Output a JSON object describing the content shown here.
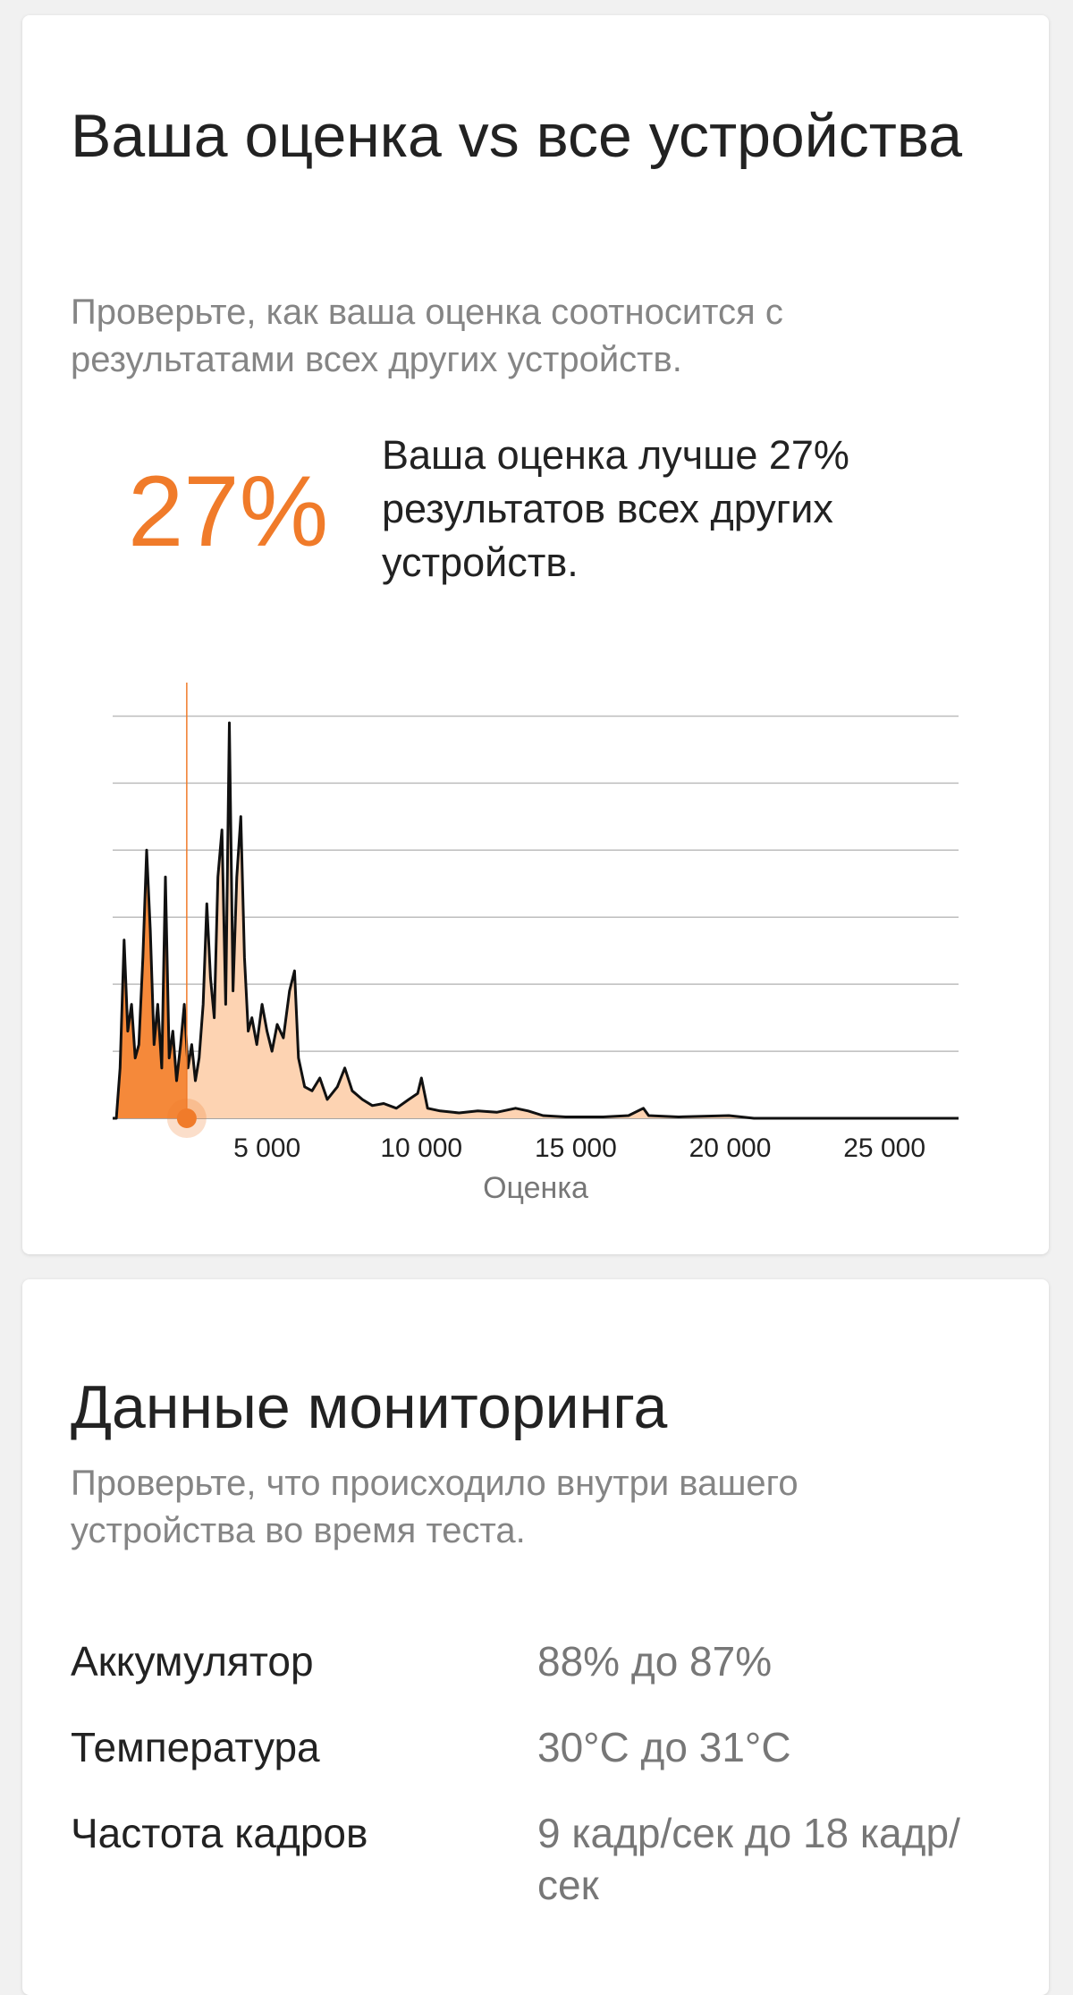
{
  "score_card": {
    "title": "Ваша оценка vs все устройства",
    "subtitle": "Проверьте, как ваша оценка соотносится с результатами всех других устройств.",
    "percent": "27%",
    "description": "Ваша оценка лучше 27% результатов всех других устройств."
  },
  "chart_data": {
    "type": "area",
    "x_label": "Оценка",
    "x": [
      0,
      120,
      240,
      370,
      490,
      610,
      730,
      850,
      980,
      1100,
      1220,
      1340,
      1460,
      1590,
      1710,
      1830,
      1950,
      2070,
      2200,
      2320,
      2440,
      2560,
      2680,
      2800,
      2930,
      3050,
      3170,
      3290,
      3410,
      3540,
      3660,
      3780,
      3900,
      4020,
      4150,
      4270,
      4390,
      4510,
      4670,
      4840,
      5000,
      5160,
      5330,
      5530,
      5730,
      5890,
      6020,
      6220,
      6460,
      6710,
      6950,
      7280,
      7520,
      7760,
      8090,
      8410,
      8780,
      9190,
      9590,
      9880,
      10000,
      10200,
      10610,
      11220,
      11830,
      12440,
      13050,
      13460,
      13940,
      14670,
      15890,
      16710,
      17190,
      17360,
      18330,
      19960,
      20770,
      27400
    ],
    "values": [
      0,
      0,
      0.75,
      2.66,
      1.3,
      1.7,
      0.9,
      1.1,
      2.4,
      4.0,
      2.8,
      1.1,
      1.7,
      0.75,
      3.6,
      0.9,
      1.3,
      0.56,
      1.1,
      1.7,
      0.75,
      1.1,
      0.56,
      0.9,
      1.7,
      3.2,
      2.1,
      1.5,
      3.6,
      4.3,
      1.7,
      5.9,
      1.9,
      3.6,
      4.5,
      2.4,
      1.3,
      1.5,
      1.1,
      1.7,
      1.3,
      1.0,
      1.4,
      1.2,
      1.9,
      2.2,
      0.9,
      0.47,
      0.41,
      0.6,
      0.28,
      0.47,
      0.75,
      0.41,
      0.28,
      0.19,
      0.22,
      0.15,
      0.28,
      0.37,
      0.6,
      0.15,
      0.11,
      0.08,
      0.11,
      0.09,
      0.15,
      0.11,
      0.04,
      0.02,
      0.02,
      0.04,
      0.15,
      0.04,
      0.02,
      0.04,
      0,
      0
    ],
    "xlim": [
      0,
      27400
    ],
    "xticks": [
      {
        "value": 5000,
        "label": "5 000"
      },
      {
        "value": 10000,
        "label": "10 000"
      },
      {
        "value": 15000,
        "label": "15 000"
      },
      {
        "value": 20000,
        "label": "20 000"
      },
      {
        "value": 25000,
        "label": "25 000"
      }
    ],
    "ylim": [
      0,
      6.5
    ],
    "yticks": [
      1,
      2,
      3,
      4,
      5,
      6
    ],
    "grid": true,
    "line_color": "#111111",
    "fill_before_color": "#f5893a",
    "fill_after_color": "#fdd3b2",
    "marker": {
      "x": 2400,
      "color": "#f07b2a"
    }
  },
  "monitoring": {
    "title": "Данные мониторинга",
    "subtitle": "Проверьте, что происходило внутри вашего устройства во время теста.",
    "rows": [
      [
        "Аккумулятор",
        "88% до 87%"
      ],
      [
        "Температура",
        "30°C до 31°C"
      ],
      [
        "Частота кадров",
        "9 кадр/сек до 18 кадр/сек"
      ]
    ]
  }
}
